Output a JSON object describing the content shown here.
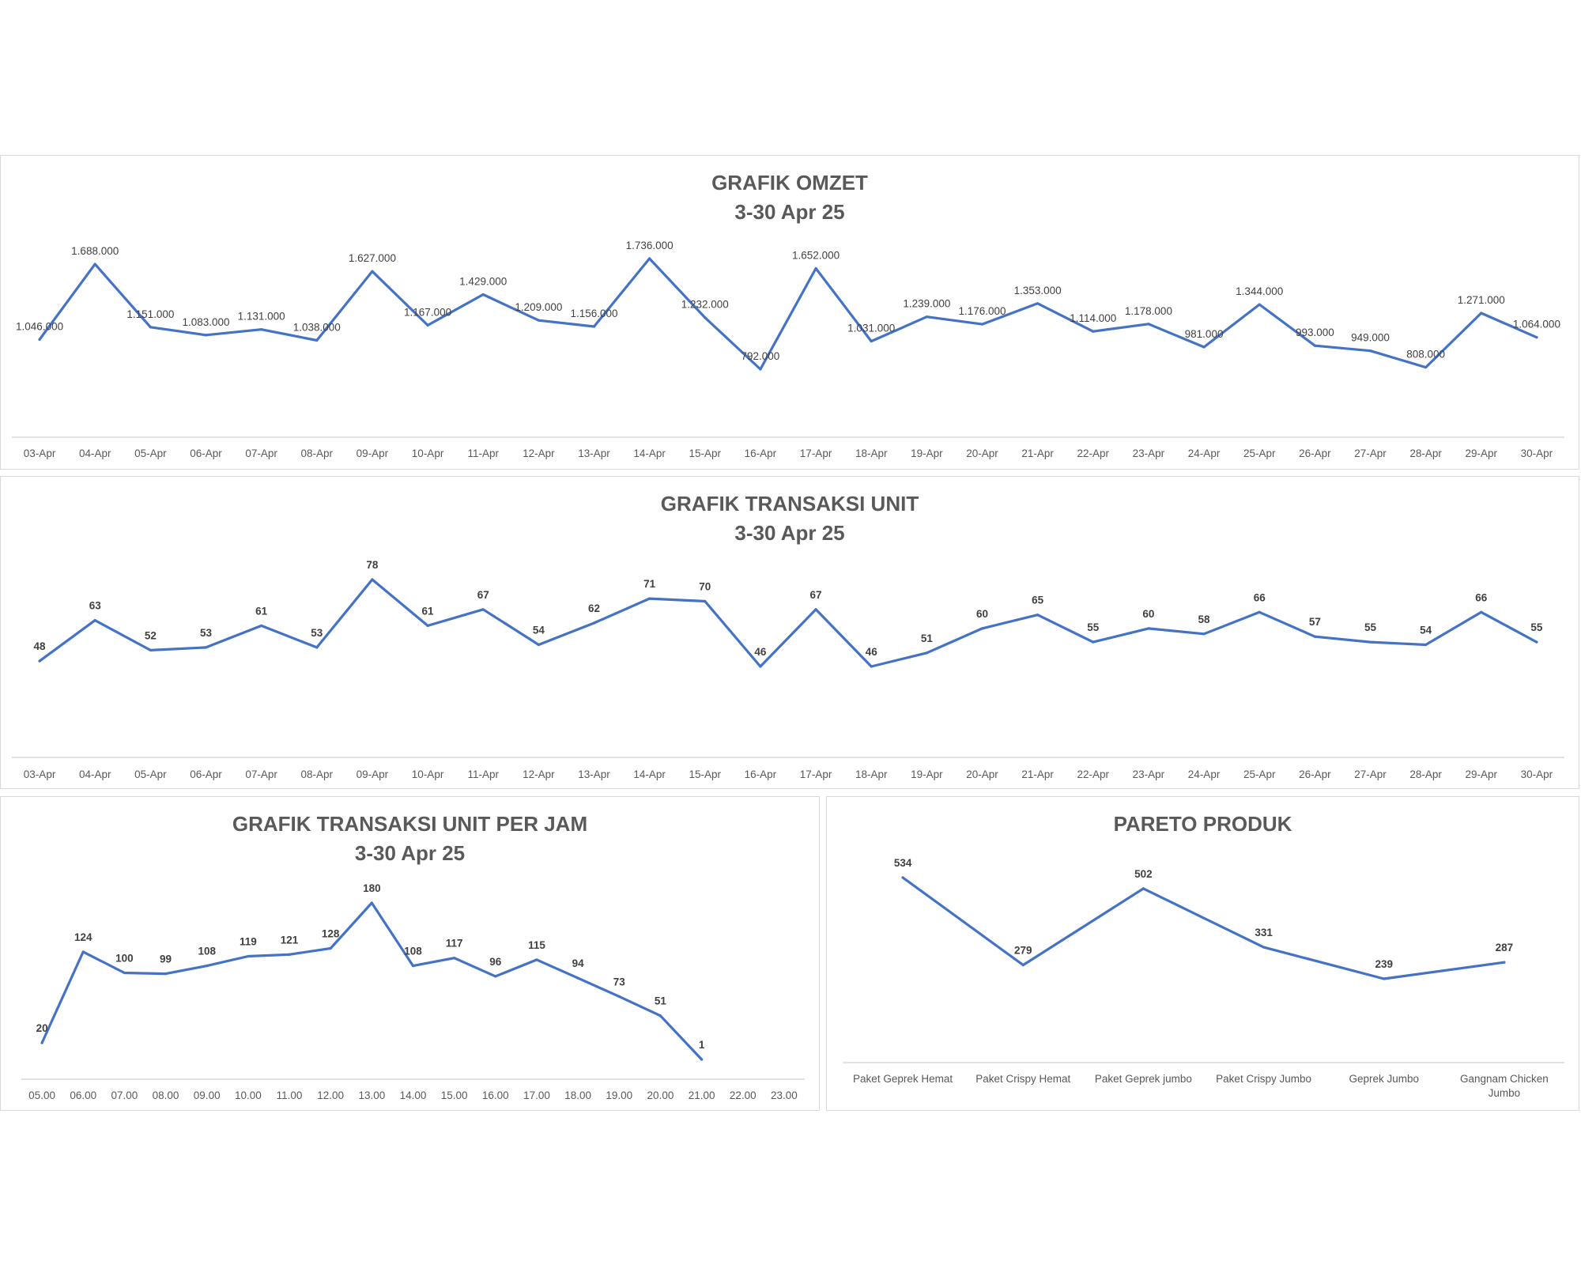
{
  "colors": {
    "line": "#4472c4",
    "axis": "#d9d9d9",
    "title": "#595959",
    "text": "#404040"
  },
  "chart_data": [
    {
      "id": "omzet",
      "type": "line",
      "title": "GRAFIK OMZET",
      "subtitle": "3-30 Apr 25",
      "categories": [
        "03-Apr",
        "04-Apr",
        "05-Apr",
        "06-Apr",
        "07-Apr",
        "08-Apr",
        "09-Apr",
        "10-Apr",
        "11-Apr",
        "12-Apr",
        "13-Apr",
        "14-Apr",
        "15-Apr",
        "16-Apr",
        "17-Apr",
        "18-Apr",
        "19-Apr",
        "20-Apr",
        "21-Apr",
        "22-Apr",
        "23-Apr",
        "24-Apr",
        "25-Apr",
        "26-Apr",
        "27-Apr",
        "28-Apr",
        "29-Apr",
        "30-Apr"
      ],
      "values": [
        1046000,
        1688000,
        1151000,
        1083000,
        1131000,
        1038000,
        1627000,
        1167000,
        1429000,
        1209000,
        1156000,
        1736000,
        1232000,
        792000,
        1652000,
        1031000,
        1239000,
        1176000,
        1353000,
        1114000,
        1178000,
        981000,
        1344000,
        993000,
        949000,
        808000,
        1271000,
        1064000
      ],
      "data_labels": [
        "1.046.000",
        "1.688.000",
        "1.151.000",
        "1.083.000",
        "1.131.000",
        "1.038.000",
        "1.627.000",
        "1.167.000",
        "1.429.000",
        "1.209.000",
        "1.156.000",
        "1.736.000",
        "1.232.000",
        "792.000",
        "1.652.000",
        "1.031.000",
        "1.239.000",
        "1.176.000",
        "1.353.000",
        "1.114.000",
        "1.178.000",
        "981.000",
        "1.344.000",
        "993.000",
        "949.000",
        "808.000",
        "1.271.000",
        "1.064.000"
      ],
      "grid": false,
      "legend": "none"
    },
    {
      "id": "unit",
      "type": "line",
      "title": "GRAFIK TRANSAKSI UNIT",
      "subtitle": "3-30 Apr 25",
      "categories": [
        "03-Apr",
        "04-Apr",
        "05-Apr",
        "06-Apr",
        "07-Apr",
        "08-Apr",
        "09-Apr",
        "10-Apr",
        "11-Apr",
        "12-Apr",
        "13-Apr",
        "14-Apr",
        "15-Apr",
        "16-Apr",
        "17-Apr",
        "18-Apr",
        "19-Apr",
        "20-Apr",
        "21-Apr",
        "22-Apr",
        "23-Apr",
        "24-Apr",
        "25-Apr",
        "26-Apr",
        "27-Apr",
        "28-Apr",
        "29-Apr",
        "30-Apr"
      ],
      "values": [
        48,
        63,
        52,
        53,
        61,
        53,
        78,
        61,
        67,
        54,
        62,
        71,
        70,
        46,
        67,
        46,
        51,
        60,
        65,
        55,
        60,
        58,
        66,
        57,
        55,
        54,
        66,
        55
      ],
      "data_labels": [
        "48",
        "63",
        "52",
        "53",
        "61",
        "53",
        "78",
        "61",
        "67",
        "54",
        "62",
        "71",
        "70",
        "46",
        "67",
        "46",
        "51",
        "60",
        "65",
        "55",
        "60",
        "58",
        "66",
        "57",
        "55",
        "54",
        "66",
        "55"
      ],
      "grid": false,
      "legend": "none"
    },
    {
      "id": "jam",
      "type": "line",
      "title": "GRAFIK TRANSAKSI UNIT PER JAM",
      "subtitle": "3-30 Apr 25",
      "categories": [
        "05.00",
        "06.00",
        "07.00",
        "08.00",
        "09.00",
        "10.00",
        "11.00",
        "12.00",
        "13.00",
        "14.00",
        "15.00",
        "16.00",
        "17.00",
        "18.00",
        "19.00",
        "20.00",
        "21.00",
        "22.00",
        "23.00"
      ],
      "values": [
        20,
        124,
        100,
        99,
        108,
        119,
        121,
        128,
        180,
        108,
        117,
        96,
        115,
        94,
        73,
        51,
        1,
        null,
        null
      ],
      "data_labels": [
        "20",
        "124",
        "100",
        "99",
        "108",
        "119",
        "121",
        "128",
        "180",
        "108",
        "117",
        "96",
        "115",
        "94",
        "73",
        "51",
        "1",
        "",
        ""
      ],
      "grid": false,
      "legend": "none"
    },
    {
      "id": "pareto",
      "type": "line",
      "title": "PARETO PRODUK",
      "subtitle": "",
      "categories": [
        "Paket Geprek Hemat",
        "Paket Crispy Hemat",
        "Paket Geprek jumbo",
        "Paket Crispy Jumbo",
        "Geprek Jumbo",
        "Gangnam Chicken Jumbo"
      ],
      "values": [
        534,
        279,
        502,
        331,
        239,
        287
      ],
      "data_labels": [
        "534",
        "279",
        "502",
        "331",
        "239",
        "287"
      ],
      "grid": false,
      "legend": "none"
    }
  ]
}
